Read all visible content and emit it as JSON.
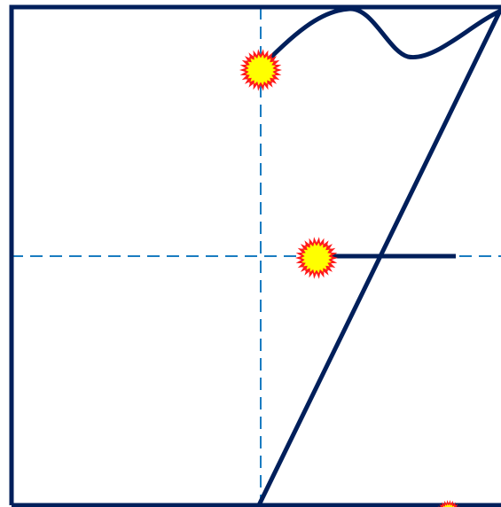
{
  "diagram": {
    "colors": {
      "frame": "#001f5b",
      "guide": "#1a7cc1",
      "curve": "#001f5b",
      "burst_outer": "#ff1a1a",
      "burst_inner": "#ffff00",
      "background": "#ffffff"
    },
    "elements": {
      "frame": "rectangular-frame",
      "guides": [
        "vertical-dashed-guide",
        "horizontal-dashed-guide"
      ],
      "curves": [
        "wave-curve",
        "diagonal-line",
        "horizontal-segment"
      ],
      "markers": [
        "upper-burst-marker",
        "middle-burst-marker",
        "bottom-burst-marker"
      ]
    }
  }
}
